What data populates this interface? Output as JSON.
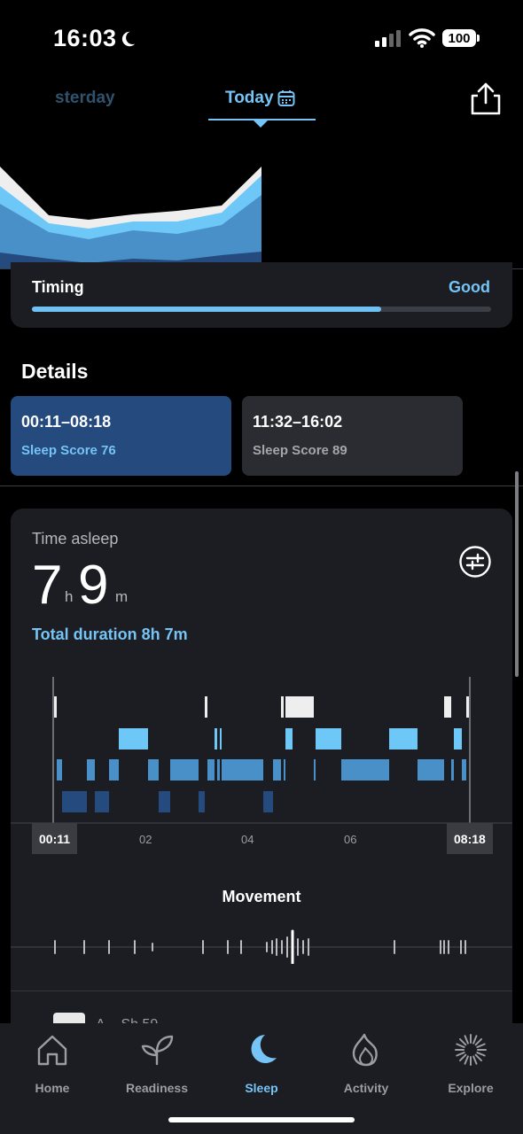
{
  "status": {
    "time": "16:03",
    "battery": "100"
  },
  "header": {
    "tab_yesterday": "sterday",
    "tab_today": "Today"
  },
  "timing": {
    "label": "Timing",
    "value": "Good",
    "progress": 0.76
  },
  "details": {
    "title": "Details",
    "periods": [
      {
        "range": "00:11–08:18",
        "score": "Sleep Score 76"
      },
      {
        "range": "11:32–16:02",
        "score": "Sleep Score 89"
      }
    ]
  },
  "asleep": {
    "label": "Time asleep",
    "hours": "7",
    "hours_unit": "h",
    "minutes": "9",
    "minutes_unit": "m",
    "total_duration": "Total duration 8h 7m"
  },
  "hypnogram": {
    "start": "00:11",
    "end": "08:18",
    "ticks": [
      "02",
      "04",
      "06"
    ]
  },
  "movement": {
    "title": "Movement"
  },
  "partial": {
    "text": "A...  Sh 59"
  },
  "nav": {
    "home": "Home",
    "readiness": "Readiness",
    "sleep": "Sleep",
    "activity": "Activity",
    "explore": "Explore"
  },
  "colors": {
    "accent": "#76c4f5",
    "deep": "#244a7e",
    "light": "#4a90c8",
    "rem": "#6ec8f7",
    "awake": "#eeeeee"
  }
}
